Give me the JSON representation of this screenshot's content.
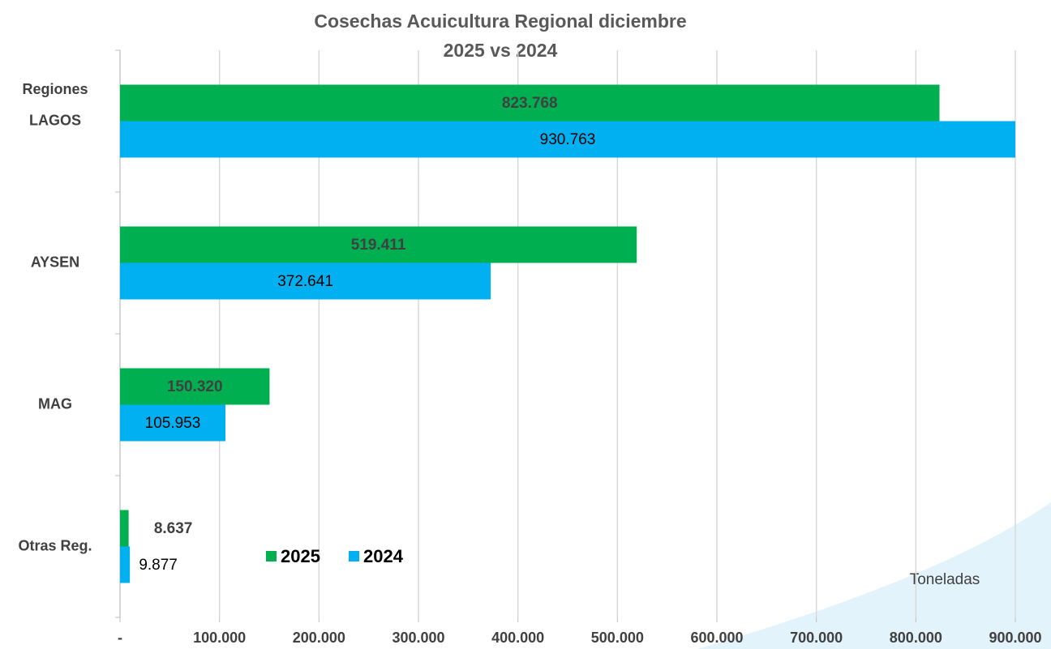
{
  "chart_data": {
    "type": "hbar",
    "title": "Cosechas Acuicultura Regional diciembre",
    "subtitle": "2025 vs 2024",
    "y_label": "Regiones",
    "annotation": "Toneladas",
    "categories": [
      "LAGOS",
      "AYSEN",
      "MAG",
      "Otras Reg."
    ],
    "series": [
      {
        "name": "2025",
        "color": "#00b050",
        "values": [
          823768,
          519411,
          150320,
          8637
        ],
        "value_labels": [
          "823.768",
          "519.411",
          "150.320",
          "8.637"
        ]
      },
      {
        "name": "2024",
        "color": "#00b0f0",
        "values": [
          930763,
          372641,
          105953,
          9877
        ],
        "value_labels": [
          "930.763",
          "372.641",
          "105.953",
          "9.877"
        ]
      }
    ],
    "xlim": [
      0,
      900000
    ],
    "xticks": [
      {
        "value": 0,
        "label": "-"
      },
      {
        "value": 100000,
        "label": "100.000"
      },
      {
        "value": 200000,
        "label": "200.000"
      },
      {
        "value": 300000,
        "label": "300.000"
      },
      {
        "value": 400000,
        "label": "400.000"
      },
      {
        "value": 500000,
        "label": "500.000"
      },
      {
        "value": 600000,
        "label": "600.000"
      },
      {
        "value": 700000,
        "label": "700.000"
      },
      {
        "value": 800000,
        "label": "800.000"
      },
      {
        "value": 900000,
        "label": "900.000"
      }
    ],
    "grid": true
  }
}
